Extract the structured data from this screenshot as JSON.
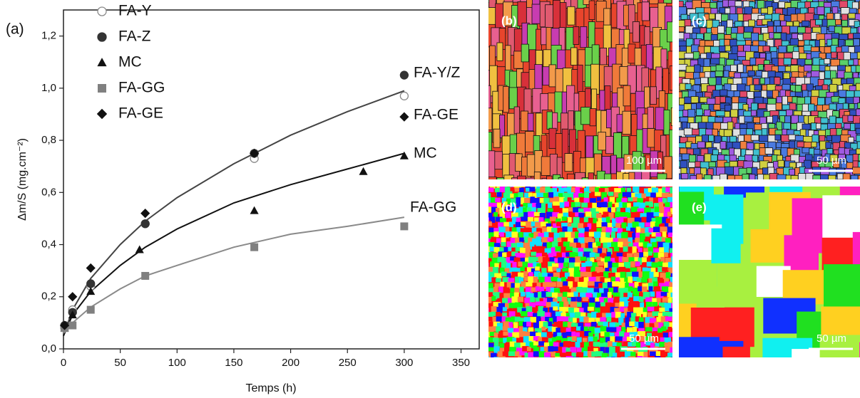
{
  "chart_data": {
    "type": "scatter",
    "panel_label": "(a)",
    "xlabel": "Temps (h)",
    "ylabel": "Δm/S (mg.cm⁻²)",
    "xlim": [
      0,
      366
    ],
    "ylim": [
      0,
      1.3
    ],
    "xticks": [
      0,
      50,
      100,
      150,
      200,
      250,
      300,
      350
    ],
    "yticks": [
      {
        "value": 0,
        "label": "0,0"
      },
      {
        "value": 0.2,
        "label": "0,2"
      },
      {
        "value": 0.4,
        "label": "0,4"
      },
      {
        "value": 0.6,
        "label": "0,6"
      },
      {
        "value": 0.8,
        "label": "0,8"
      },
      {
        "value": 1.0,
        "label": "1,0"
      },
      {
        "value": 1.2,
        "label": "1,2"
      }
    ],
    "legend": "upper left",
    "series": [
      {
        "name": "FA-Y",
        "color": "#8a8a8a",
        "marker": "circle-open",
        "x": [
          1,
          8,
          24,
          72,
          168,
          300
        ],
        "values": [
          0.08,
          0.15,
          0.24,
          0.48,
          0.73,
          0.97
        ]
      },
      {
        "name": "FA-Z",
        "color": "#333333",
        "marker": "circle",
        "x": [
          1,
          8,
          24,
          72,
          168,
          300
        ],
        "values": [
          0.09,
          0.14,
          0.25,
          0.48,
          0.75,
          1.05
        ]
      },
      {
        "name": "MC",
        "color": "#111111",
        "marker": "triangle",
        "x": [
          1,
          8,
          24,
          67,
          168,
          264,
          300
        ],
        "values": [
          0.08,
          0.13,
          0.22,
          0.38,
          0.53,
          0.68,
          0.74
        ]
      },
      {
        "name": "FA-GG",
        "color": "#808080",
        "marker": "square",
        "x": [
          1,
          8,
          24,
          72,
          168,
          300
        ],
        "values": [
          0.08,
          0.09,
          0.15,
          0.28,
          0.39,
          0.47
        ]
      },
      {
        "name": "FA-GE",
        "color": "#111111",
        "marker": "diamond",
        "x": [
          1,
          8,
          24,
          72,
          168,
          300
        ],
        "values": [
          0.09,
          0.2,
          0.31,
          0.52,
          0.75,
          0.89
        ]
      }
    ],
    "fits": [
      {
        "color": "#444444",
        "x": [
          0,
          8,
          24,
          50,
          72,
          100,
          150,
          200,
          250,
          300
        ],
        "values": [
          0.05,
          0.15,
          0.27,
          0.4,
          0.49,
          0.58,
          0.71,
          0.82,
          0.91,
          0.99
        ]
      },
      {
        "color": "#111111",
        "x": [
          0,
          8,
          24,
          50,
          72,
          100,
          150,
          200,
          250,
          300
        ],
        "values": [
          0.05,
          0.13,
          0.22,
          0.32,
          0.39,
          0.46,
          0.56,
          0.63,
          0.69,
          0.75
        ]
      },
      {
        "color": "#8a8a8a",
        "x": [
          0,
          8,
          24,
          50,
          72,
          100,
          150,
          200,
          250,
          300
        ],
        "values": [
          0.06,
          0.1,
          0.16,
          0.23,
          0.28,
          0.32,
          0.39,
          0.44,
          0.47,
          0.505
        ]
      }
    ],
    "annotations": [
      "FA-Y/Z",
      "FA-GE",
      "MC",
      "FA-GG"
    ]
  },
  "panels": [
    {
      "label": "(b)",
      "scale": "100 µm"
    },
    {
      "label": "(c)",
      "scale": "50 µm"
    },
    {
      "label": "(d)",
      "scale": "50 µm"
    },
    {
      "label": "(e)",
      "scale": "50 µm"
    }
  ]
}
